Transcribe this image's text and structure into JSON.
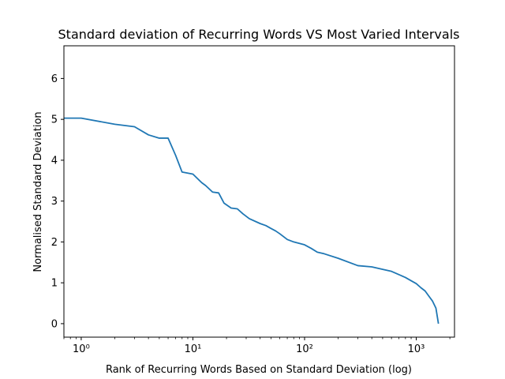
{
  "chart_data": {
    "type": "line",
    "title": "Standard deviation of Recurring Words VS Most Varied Intervals",
    "xlabel": "Rank of Recurring Words Based on Standard Deviation (log)",
    "ylabel": "Normalised Standard Deviation",
    "x_scale": "log",
    "xlim": [
      0.7,
      2200
    ],
    "ylim": [
      -0.33,
      6.8
    ],
    "x_ticks": [
      {
        "value": 1,
        "label": "10⁰"
      },
      {
        "value": 10,
        "label": "10¹"
      },
      {
        "value": 100,
        "label": "10²"
      },
      {
        "value": 1000,
        "label": "10³"
      }
    ],
    "y_ticks": [
      {
        "value": 0,
        "label": "0"
      },
      {
        "value": 1,
        "label": "1"
      },
      {
        "value": 2,
        "label": "2"
      },
      {
        "value": 3,
        "label": "3"
      },
      {
        "value": 4,
        "label": "4"
      },
      {
        "value": 5,
        "label": "5"
      },
      {
        "value": 6,
        "label": "6"
      }
    ],
    "grid": false,
    "color": "#1f77b4",
    "series": [
      {
        "x": [
          0.7,
          1,
          2,
          3,
          4,
          5,
          6,
          7,
          8,
          10,
          12,
          13,
          15,
          17,
          19,
          22,
          25,
          28,
          32,
          40,
          45,
          50,
          55,
          60,
          70,
          80,
          100,
          115,
          130,
          150,
          200,
          300,
          400,
          500,
          600,
          700,
          800,
          900,
          1000,
          1100,
          1200,
          1300,
          1400,
          1500,
          1580
        ],
        "y": [
          5.03,
          5.03,
          4.88,
          4.82,
          4.62,
          4.54,
          4.54,
          4.12,
          3.71,
          3.66,
          3.45,
          3.38,
          3.22,
          3.2,
          2.95,
          2.83,
          2.81,
          2.69,
          2.57,
          2.45,
          2.4,
          2.33,
          2.27,
          2.2,
          2.06,
          2.0,
          1.93,
          1.84,
          1.75,
          1.71,
          1.6,
          1.42,
          1.39,
          1.33,
          1.28,
          1.2,
          1.13,
          1.05,
          0.98,
          0.88,
          0.8,
          0.67,
          0.55,
          0.38,
          0.0
        ]
      }
    ]
  }
}
